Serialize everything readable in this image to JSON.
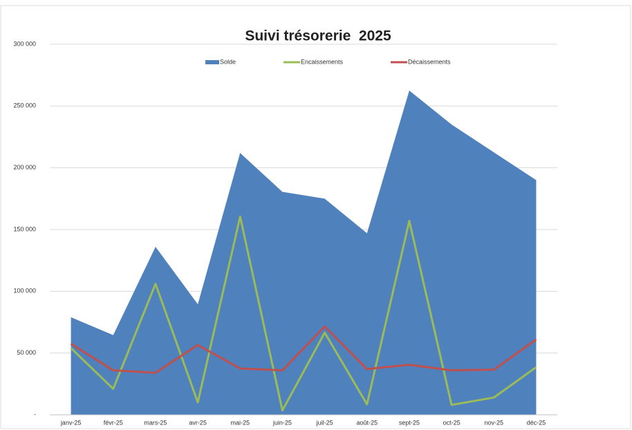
{
  "chart_data": {
    "type": "line",
    "title": "Suivi trésorerie  2025",
    "categories": [
      "janv-25",
      "févr-25",
      "mars-25",
      "avr-25",
      "mai-25",
      "juin-25",
      "juil-25",
      "août-25",
      "sept-25",
      "oct-25",
      "nov-25",
      "déc-25"
    ],
    "series": [
      {
        "name": "Solde",
        "type": "area",
        "color": "#4f81bd",
        "values": [
          79000,
          64500,
          136000,
          89500,
          212000,
          180500,
          175000,
          147000,
          262500,
          235000,
          212500,
          190000
        ]
      },
      {
        "name": "Encaissements",
        "type": "line",
        "color": "#9bbb59",
        "values": [
          54000,
          21000,
          106000,
          10000,
          160500,
          3500,
          66500,
          8500,
          157000,
          8000,
          14000,
          38500
        ]
      },
      {
        "name": "Décaissements",
        "type": "line",
        "color": "#c0504d",
        "values": [
          57500,
          36000,
          34000,
          56500,
          37500,
          36000,
          71500,
          37000,
          40500,
          36000,
          36500,
          61000
        ]
      }
    ],
    "ylim": [
      0,
      300000
    ],
    "yticks": [
      {
        "value": 0,
        "label": "-"
      },
      {
        "value": 50000,
        "label": "50 000"
      },
      {
        "value": 100000,
        "label": "100 000"
      },
      {
        "value": 150000,
        "label": "150 000"
      },
      {
        "value": 200000,
        "label": "200 000"
      },
      {
        "value": 250000,
        "label": "250 000"
      },
      {
        "value": 300000,
        "label": "300 000"
      }
    ],
    "grid": true,
    "legend": "top"
  }
}
